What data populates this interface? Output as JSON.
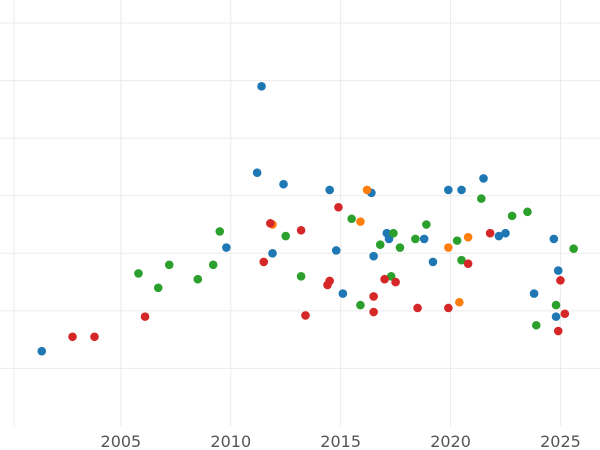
{
  "chart_data": {
    "type": "scatter",
    "title": "",
    "xlabel": "",
    "ylabel": "",
    "xlim": [
      1999.5,
      2026.8
    ],
    "ylim": [
      0,
      7.4
    ],
    "x_ticks": [
      2005,
      2010,
      2015,
      2020,
      2025
    ],
    "y_ticks": [
      1,
      2,
      3,
      4,
      5,
      6,
      7
    ],
    "grid": true,
    "legend": "none",
    "series": [
      {
        "color": "#1f77b4",
        "points": [
          [
            2001.4,
            1.3
          ],
          [
            2009.8,
            3.1
          ],
          [
            2011.2,
            4.4
          ],
          [
            2011.4,
            5.9
          ],
          [
            2011.9,
            3.0
          ],
          [
            2012.4,
            4.2
          ],
          [
            2014.5,
            4.1
          ],
          [
            2014.8,
            3.05
          ],
          [
            2015.1,
            2.3
          ],
          [
            2016.4,
            4.05
          ],
          [
            2016.5,
            2.95
          ],
          [
            2017.1,
            3.35
          ],
          [
            2017.2,
            3.25
          ],
          [
            2018.8,
            3.25
          ],
          [
            2019.2,
            2.85
          ],
          [
            2019.9,
            4.1
          ],
          [
            2020.5,
            4.1
          ],
          [
            2021.5,
            4.3
          ],
          [
            2022.2,
            3.3
          ],
          [
            2022.5,
            3.35
          ],
          [
            2023.8,
            2.3
          ],
          [
            2024.7,
            3.25
          ],
          [
            2024.8,
            1.9
          ],
          [
            2024.9,
            2.7
          ]
        ]
      },
      {
        "color": "#ff7f0e",
        "points": [
          [
            2011.9,
            3.5
          ],
          [
            2015.9,
            3.55
          ],
          [
            2016.2,
            4.1
          ],
          [
            2019.9,
            3.1
          ],
          [
            2020.4,
            2.15
          ],
          [
            2020.8,
            3.28
          ]
        ]
      },
      {
        "color": "#2ca02c",
        "points": [
          [
            2005.8,
            2.65
          ],
          [
            2006.7,
            2.4
          ],
          [
            2007.2,
            2.8
          ],
          [
            2008.5,
            2.55
          ],
          [
            2009.2,
            2.8
          ],
          [
            2009.5,
            3.38
          ],
          [
            2012.5,
            3.3
          ],
          [
            2013.2,
            2.6
          ],
          [
            2015.5,
            3.6
          ],
          [
            2015.9,
            2.1
          ],
          [
            2016.8,
            3.15
          ],
          [
            2017.3,
            2.6
          ],
          [
            2017.4,
            3.35
          ],
          [
            2017.7,
            3.1
          ],
          [
            2018.4,
            3.25
          ],
          [
            2018.9,
            3.5
          ],
          [
            2020.3,
            3.22
          ],
          [
            2020.5,
            2.88
          ],
          [
            2021.4,
            3.95
          ],
          [
            2022.8,
            3.65
          ],
          [
            2023.5,
            3.72
          ],
          [
            2023.9,
            1.75
          ],
          [
            2024.8,
            2.1
          ],
          [
            2025.6,
            3.08
          ]
        ]
      },
      {
        "color": "#d62728",
        "points": [
          [
            2002.8,
            1.55
          ],
          [
            2003.8,
            1.55
          ],
          [
            2006.1,
            1.9
          ],
          [
            2011.5,
            2.85
          ],
          [
            2011.8,
            3.52
          ],
          [
            2013.2,
            3.4
          ],
          [
            2013.4,
            1.92
          ],
          [
            2014.4,
            2.45
          ],
          [
            2014.5,
            2.52
          ],
          [
            2014.9,
            3.8
          ],
          [
            2016.5,
            2.25
          ],
          [
            2016.5,
            1.98
          ],
          [
            2017.0,
            2.55
          ],
          [
            2017.5,
            2.5
          ],
          [
            2018.5,
            2.05
          ],
          [
            2019.9,
            2.05
          ],
          [
            2020.8,
            2.82
          ],
          [
            2021.8,
            3.35
          ],
          [
            2024.9,
            1.65
          ],
          [
            2025.0,
            2.53
          ],
          [
            2025.2,
            1.95
          ]
        ]
      }
    ]
  }
}
